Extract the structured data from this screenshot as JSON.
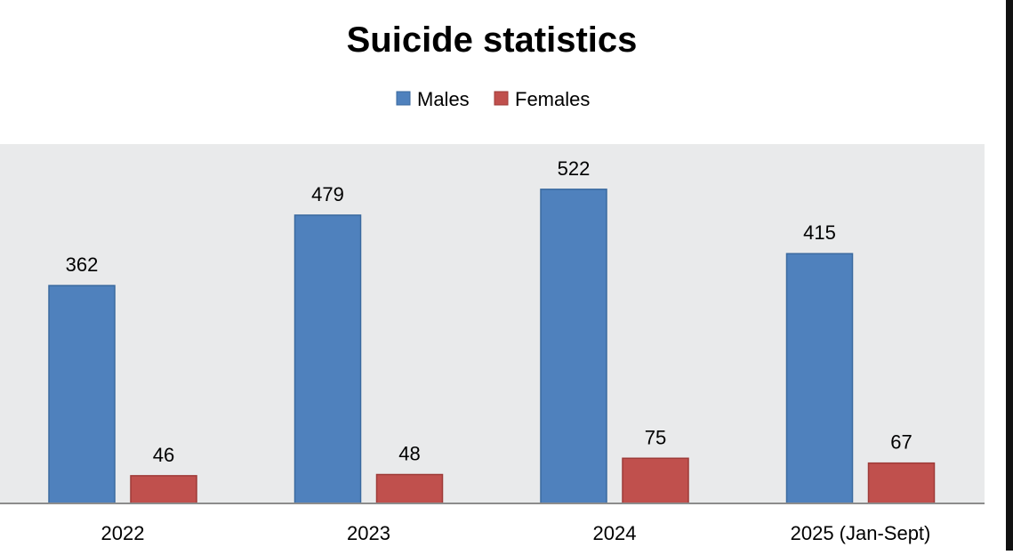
{
  "chart_data": {
    "type": "bar",
    "title": "Suicide statistics",
    "categories": [
      "2022",
      "2023",
      "2024",
      "2025 (Jan-Sept)"
    ],
    "series": [
      {
        "name": "Males",
        "values": [
          362,
          479,
          522,
          415
        ],
        "color": "#4f81bd"
      },
      {
        "name": "Females",
        "values": [
          46,
          48,
          75,
          67
        ],
        "color": "#c0504d"
      }
    ],
    "legend_position": "top-center",
    "grid": false,
    "plot_background": "#e9eaeb"
  }
}
